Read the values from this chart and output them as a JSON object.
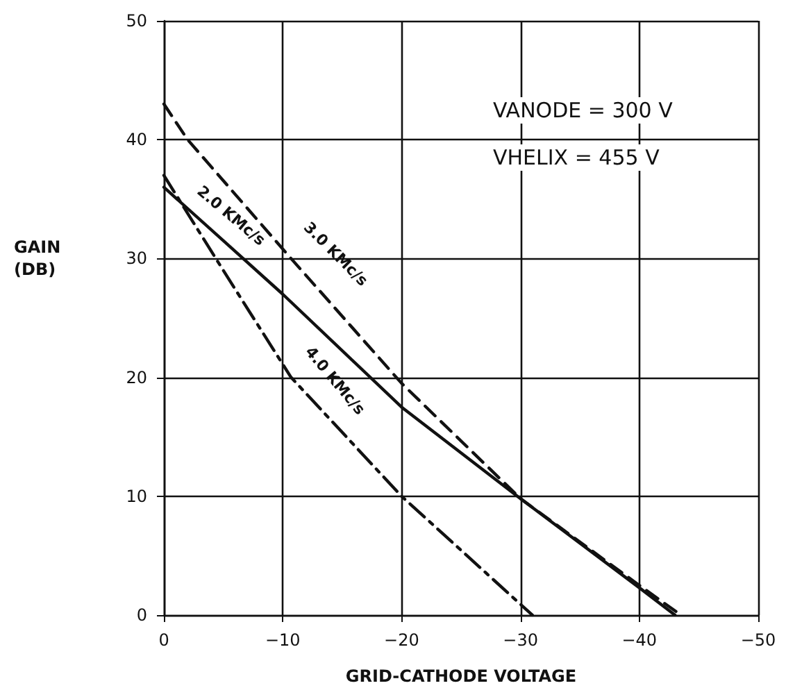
{
  "chart_data": {
    "type": "line",
    "xlabel": "GRID-CATHODE VOLTAGE",
    "ylabel": "GAIN\n(DB)",
    "xlim": [
      0,
      -50
    ],
    "ylim": [
      0,
      50
    ],
    "xticks": [
      0,
      -10,
      -20,
      -30,
      -40,
      -50
    ],
    "yticks": [
      0,
      10,
      20,
      30,
      40,
      50
    ],
    "grid": true,
    "legend": false,
    "marker": "none",
    "annotations": [
      "VANODE = 300 V",
      "VHELIX = 455 V"
    ],
    "series": [
      {
        "name": "2.0 KMc/s",
        "color": "#111111",
        "line_style": "solid",
        "x": [
          0,
          -5,
          -10,
          -20,
          -30,
          -40,
          -43
        ],
        "values": [
          36,
          31.5,
          27,
          17.5,
          9.8,
          2.3,
          0
        ]
      },
      {
        "name": "3.0 KMc/s",
        "color": "#111111",
        "line_style": "dashed",
        "x": [
          0,
          -2,
          -10.7,
          -20,
          -30,
          -40,
          -43.5
        ],
        "values": [
          43,
          40,
          30,
          19.5,
          9.8,
          2.5,
          0
        ]
      },
      {
        "name": "4.0 KMc/s",
        "color": "#111111",
        "line_style": "dashdot",
        "x": [
          0,
          -5,
          -10.7,
          -20,
          -31
        ],
        "values": [
          37,
          29,
          20,
          10,
          0
        ]
      }
    ]
  }
}
